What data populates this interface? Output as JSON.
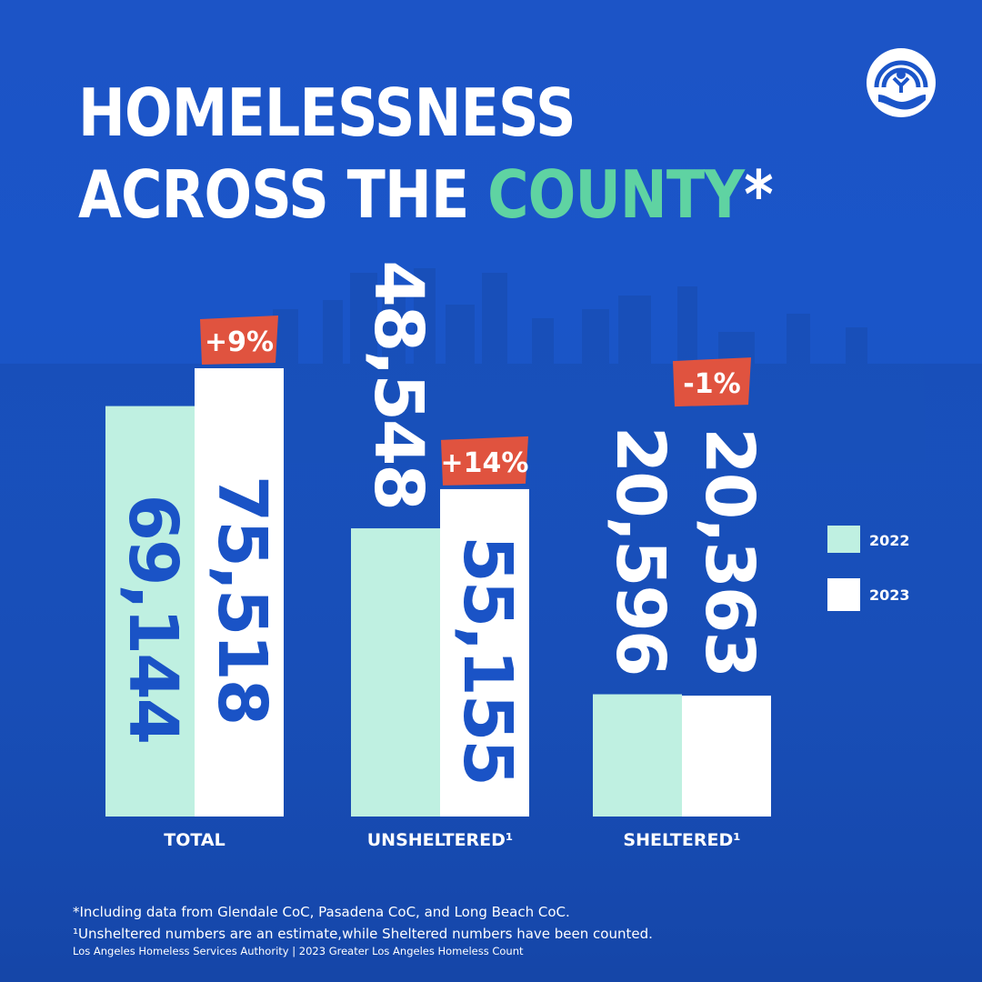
{
  "title": {
    "line1": "HOMELESSNESS",
    "line2_prefix": "ACROSS THE ",
    "line2_highlight": "COUNTY",
    "line2_suffix": "*"
  },
  "colors": {
    "background": "#1b55c9",
    "series_2022": "#bff0e1",
    "series_2023": "#ffffff",
    "label_on_bar": "#1a53c6",
    "label_on_bg": "#ffffff",
    "change_badge": "#e0533f",
    "title_highlight": "#5fd3a2"
  },
  "logo": {
    "icon": "united-way-hand-icon"
  },
  "chart_data": {
    "type": "bar",
    "categories": [
      "TOTAL",
      "UNSHELTERED¹",
      "SHELTERED¹"
    ],
    "series": [
      {
        "name": "2022",
        "values": [
          69144,
          48548,
          20596
        ],
        "labels": [
          "69,144",
          "48,548",
          "20,596"
        ]
      },
      {
        "name": "2023",
        "values": [
          75518,
          55155,
          20363
        ],
        "labels": [
          "75,518",
          "55,155",
          "20,363"
        ]
      }
    ],
    "changes": [
      "+9%",
      "+14%",
      "-1%"
    ],
    "legend": {
      "placement": "right",
      "entries": [
        "2022",
        "2023"
      ]
    },
    "grid": false,
    "ylim": [
      0,
      100000
    ]
  },
  "footnotes": [
    "*Including data from Glendale CoC, Pasadena CoC, and Long Beach CoC.",
    "¹Unsheltered numbers are an estimate,while Sheltered numbers have been counted.",
    "Los Angeles Homeless Services Authority | 2023 Greater Los Angeles Homeless Count"
  ]
}
